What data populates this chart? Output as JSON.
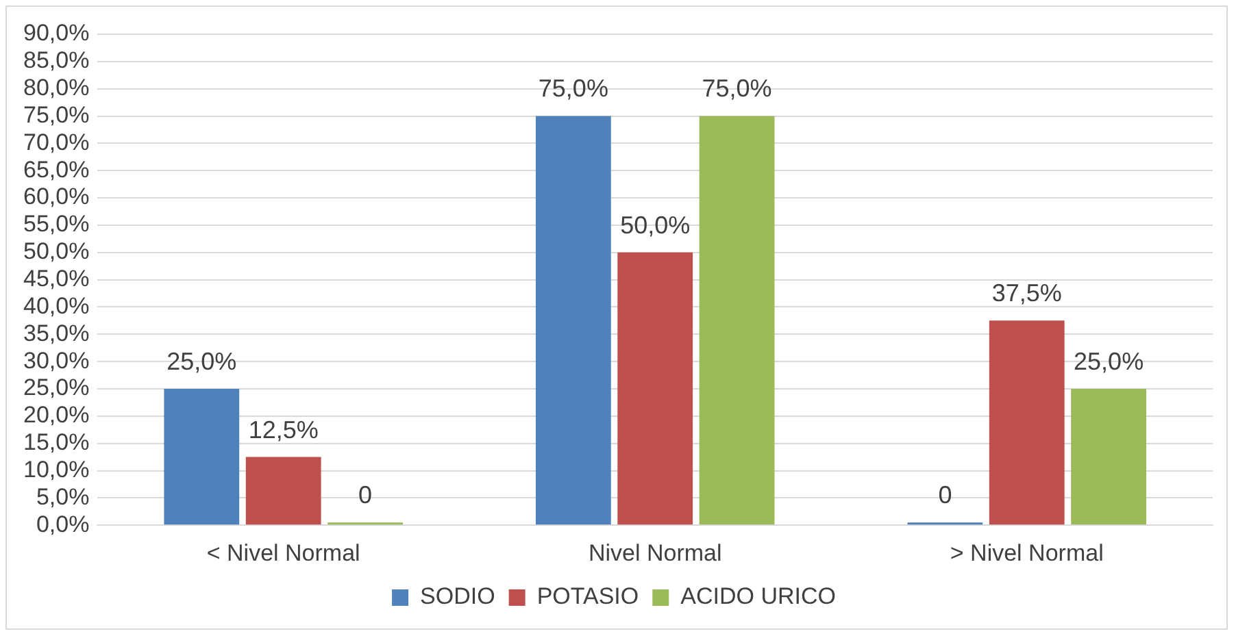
{
  "chart_data": {
    "type": "bar",
    "categories": [
      "< Nivel Normal",
      "Nivel Normal",
      "> Nivel Normal"
    ],
    "series": [
      {
        "name": "SODIO",
        "color": "#4f81bd",
        "values": [
          25,
          75,
          0
        ],
        "value_labels": [
          "25,0%",
          "75,0%",
          "0"
        ]
      },
      {
        "name": "POTASIO",
        "color": "#c0504d",
        "values": [
          12.5,
          50,
          37.5
        ],
        "value_labels": [
          "12,5%",
          "50,0%",
          "37,5%"
        ]
      },
      {
        "name": "ACIDO URICO",
        "color": "#9bbb59",
        "values": [
          0,
          75,
          25
        ],
        "value_labels": [
          "0",
          "75,0%",
          "25,0%"
        ]
      }
    ],
    "ylim": [
      0,
      90
    ],
    "yticks": [
      {
        "value": 0,
        "label": "0,0%"
      },
      {
        "value": 5,
        "label": "5,0%"
      },
      {
        "value": 10,
        "label": "10,0%"
      },
      {
        "value": 15,
        "label": "15,0%"
      },
      {
        "value": 20,
        "label": "20,0%"
      },
      {
        "value": 25,
        "label": "25,0%"
      },
      {
        "value": 30,
        "label": "30,0%"
      },
      {
        "value": 35,
        "label": "35,0%"
      },
      {
        "value": 40,
        "label": "40,0%"
      },
      {
        "value": 45,
        "label": "45,0%"
      },
      {
        "value": 50,
        "label": "50,0%"
      },
      {
        "value": 55,
        "label": "55,0%"
      },
      {
        "value": 60,
        "label": "60,0%"
      },
      {
        "value": 65,
        "label": "65,0%"
      },
      {
        "value": 70,
        "label": "70,0%"
      },
      {
        "value": 75,
        "label": "75,0%"
      },
      {
        "value": 80,
        "label": "80,0%"
      },
      {
        "value": 85,
        "label": "85,0%"
      },
      {
        "value": 90,
        "label": "90,0%"
      }
    ],
    "grid": "y",
    "legend": "bottom"
  }
}
